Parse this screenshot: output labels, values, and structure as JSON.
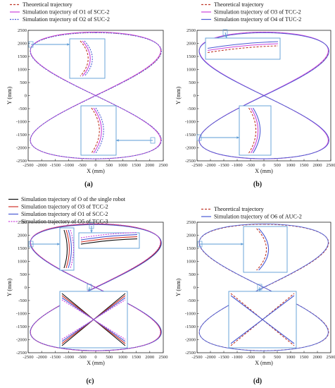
{
  "figure": {
    "x_axis_label": "X (mm)",
    "y_axis_label": "Y (mm)",
    "x_ticks": [
      "-2500",
      "-2000",
      "-1500",
      "-1000",
      "-500",
      "0",
      "500",
      "1000",
      "1500",
      "2000",
      "2500"
    ],
    "y_ticks": [
      "2500",
      "2000",
      "1500",
      "1000",
      "500",
      "0",
      "-500",
      "-1000",
      "-1500",
      "-2000",
      "-2500"
    ]
  },
  "chart_data": [
    {
      "type": "line",
      "panel_label": "(a)",
      "xlabel": "X (mm)",
      "ylabel": "Y (mm)",
      "xlim": [
        -2500,
        2500
      ],
      "ylim": [
        -2500,
        2500
      ],
      "legend_position": "top-left",
      "series": [
        {
          "name": "Theoretical trajectory",
          "color": "#c0392b",
          "dash": "3,2"
        },
        {
          "name": "Simulation trajectory of O1 of SCC-2",
          "color": "#cc44dd",
          "dash": ""
        },
        {
          "name": "Simulation trajectory of O2 of SUC-2",
          "color": "#4a5bd4",
          "dash": "2,1.5"
        }
      ],
      "insets": [
        "top-left loop edge near (-2400, 2000)",
        "right loop edge near (2400, -1800)"
      ]
    },
    {
      "type": "line",
      "panel_label": "(b)",
      "xlabel": "X (mm)",
      "ylabel": "Y (mm)",
      "xlim": [
        -2500,
        2500
      ],
      "ylim": [
        -2500,
        2500
      ],
      "legend_position": "top-left",
      "series": [
        {
          "name": "Theoretical trajectory",
          "color": "#c0392b",
          "dash": "3,2"
        },
        {
          "name": "Simulation trajectory of O3 of TCC-2",
          "color": "#cc44dd",
          "dash": ""
        },
        {
          "name": "Simulation trajectory of O4 of TUC-2",
          "color": "#4a5bd4",
          "dash": ""
        }
      ],
      "insets": [
        "top edge near (-200, 2450)",
        "left loop edge near (-2400, -1800)"
      ]
    },
    {
      "type": "line",
      "panel_label": "(c)",
      "xlabel": "X (mm)",
      "ylabel": "Y (mm)",
      "xlim": [
        -2500,
        2500
      ],
      "ylim": [
        -2500,
        2500
      ],
      "legend_position": "top-left",
      "series": [
        {
          "name": "Simulation trajectory of O of the single robot",
          "color": "#111111",
          "dash": ""
        },
        {
          "name": "Simulation trajectory of O3 of TCC-2",
          "color": "#d0342c",
          "dash": ""
        },
        {
          "name": "Simulation trajectory of O1 of SCC-2",
          "color": "#4a5bd4",
          "dash": ""
        },
        {
          "name": "Simulation trajectory of O5 of TCC-3",
          "color": "#cc44dd",
          "dash": "2,1.5"
        }
      ],
      "insets": [
        "left loop edge near (-2400, 2000)",
        "top edge near (-200, 2450)",
        "crossing near (0, 0)"
      ]
    },
    {
      "type": "line",
      "panel_label": "(d)",
      "xlabel": "X (mm)",
      "ylabel": "Y (mm)",
      "xlim": [
        -2500,
        2500
      ],
      "ylim": [
        -2500,
        2500
      ],
      "legend_position": "top-left",
      "series": [
        {
          "name": "Theoretical trajectory",
          "color": "#c0392b",
          "dash": "3,2"
        },
        {
          "name": "Simulation trajectory of O6 of AUC-2",
          "color": "#4a5bd4",
          "dash": ""
        }
      ],
      "insets": [
        "left loop edge near (-2400, 2000)",
        "crossing near (0, 0)"
      ]
    }
  ]
}
